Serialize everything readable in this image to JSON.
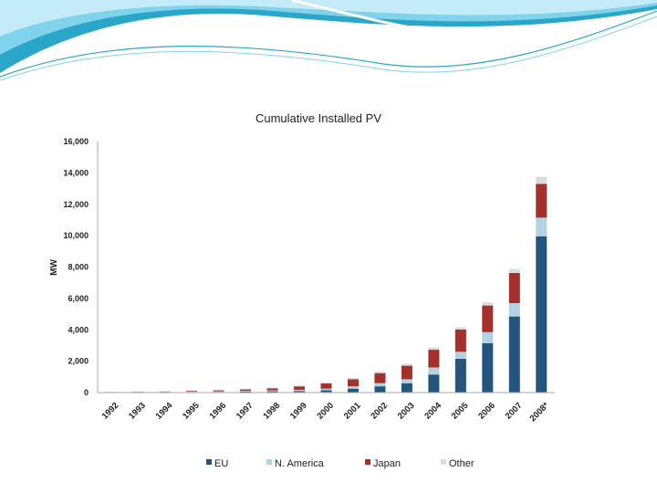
{
  "colors": {
    "EU": "#24567d",
    "N. America": "#b3d2e3",
    "Japan": "#a3302a",
    "Other": "#dcdcdc",
    "header_light": "#bfe9f7",
    "header_dark": "#2aa6c9"
  },
  "chart_data": {
    "type": "bar",
    "stacked": true,
    "title": "Cumulative Installed PV",
    "xlabel": "",
    "ylabel": "MW",
    "ylim": [
      0,
      16000
    ],
    "yticks": [
      "0",
      "2,000",
      "4,000",
      "6,000",
      "8,000",
      "10,000",
      "12,000",
      "14,000",
      "16,000"
    ],
    "ytick_values": [
      0,
      2000,
      4000,
      6000,
      8000,
      10000,
      12000,
      14000,
      16000
    ],
    "categories": [
      "1992",
      "1993",
      "1994",
      "1995",
      "1996",
      "1997",
      "1998",
      "1999",
      "2000",
      "2001",
      "2002",
      "2003",
      "2004",
      "2005",
      "2006",
      "2007",
      "2008*"
    ],
    "series": [
      {
        "name": "EU",
        "values": [
          10,
          15,
          20,
          30,
          40,
          60,
          80,
          100,
          150,
          250,
          400,
          600,
          1150,
          2150,
          3150,
          4850,
          9950
        ]
      },
      {
        "name": "N. America",
        "values": [
          15,
          20,
          25,
          30,
          40,
          50,
          60,
          80,
          100,
          150,
          200,
          250,
          450,
          450,
          700,
          850,
          1200
        ]
      },
      {
        "name": "Japan",
        "values": [
          10,
          15,
          20,
          45,
          60,
          90,
          130,
          210,
          330,
          450,
          640,
          860,
          1130,
          1420,
          1700,
          1920,
          2150
        ]
      },
      {
        "name": "Other",
        "values": [
          20,
          25,
          30,
          35,
          40,
          50,
          60,
          70,
          80,
          90,
          110,
          130,
          150,
          150,
          200,
          250,
          450
        ]
      }
    ],
    "grid": false,
    "legend_position": "bottom"
  }
}
